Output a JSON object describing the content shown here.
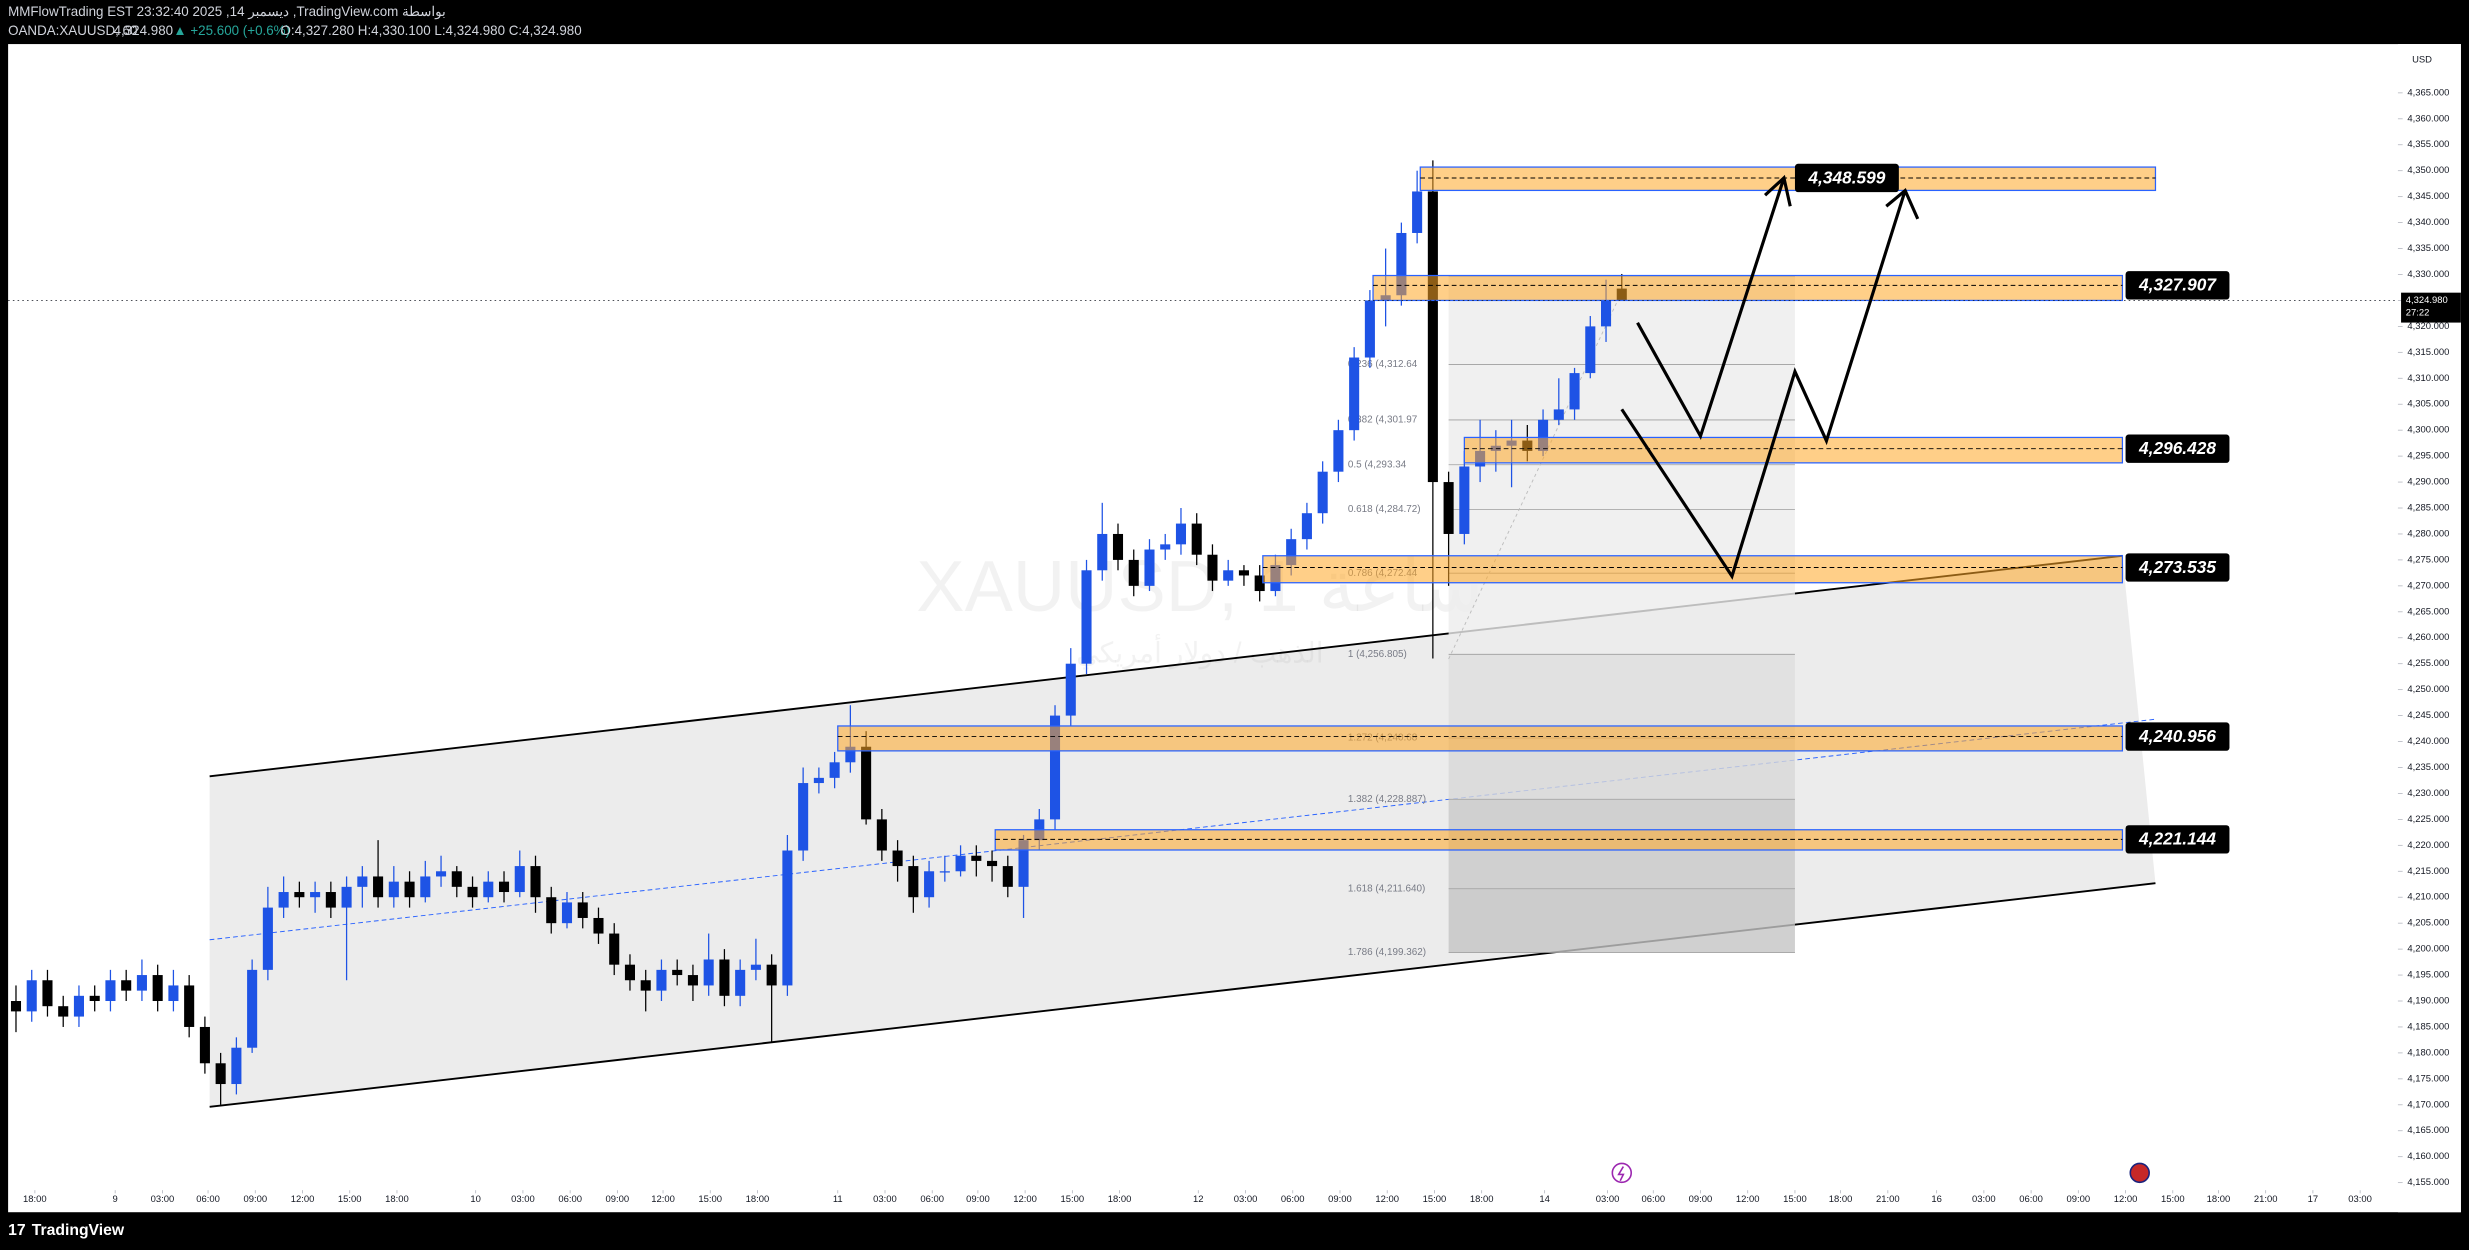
{
  "header": {
    "line1": "MMFlowTrading EST 23:32:40 2025 ,14 ديسمبر ,TradingView.com بواسطة",
    "symbol": "OANDA:XAUUSD, 60",
    "last": "4,324.980",
    "change": "▲ +25.600 (+0.6%)",
    "ohlc": "O:4,327.280 H:4,330.100 L:4,324.980 C:4,324.980"
  },
  "footer": {
    "brand": "TradingView"
  },
  "chart_data": {
    "type": "candlestick",
    "currency": "USD",
    "watermark": [
      "XAUUSD, 1 ساعة",
      "الذهب / دولار أمريكي"
    ],
    "xlim": [
      0,
      151.8
    ],
    "ylim": [
      4149.3,
      4374.4
    ],
    "last_price": 4324.98,
    "last_price_label": "4,324.980",
    "countdown": "27:22",
    "up_color": "#1e53e5",
    "down_color": "#000000",
    "yticks": [
      {
        "value": 4155,
        "label": "4,155.000"
      },
      {
        "value": 4160,
        "label": "4,160.000"
      },
      {
        "value": 4165,
        "label": "4,165.000"
      },
      {
        "value": 4170,
        "label": "4,170.000"
      },
      {
        "value": 4175,
        "label": "4,175.000"
      },
      {
        "value": 4180,
        "label": "4,180.000"
      },
      {
        "value": 4185,
        "label": "4,185.000"
      },
      {
        "value": 4190,
        "label": "4,190.000"
      },
      {
        "value": 4195,
        "label": "4,195.000"
      },
      {
        "value": 4200,
        "label": "4,200.000"
      },
      {
        "value": 4205,
        "label": "4,205.000"
      },
      {
        "value": 4210,
        "label": "4,210.000"
      },
      {
        "value": 4215,
        "label": "4,215.000"
      },
      {
        "value": 4220,
        "label": "4,220.000"
      },
      {
        "value": 4225,
        "label": "4,225.000"
      },
      {
        "value": 4230,
        "label": "4,230.000"
      },
      {
        "value": 4235,
        "label": "4,235.000"
      },
      {
        "value": 4240,
        "label": "4,240.000"
      },
      {
        "value": 4245,
        "label": "4,245.000"
      },
      {
        "value": 4250,
        "label": "4,250.000"
      },
      {
        "value": 4255,
        "label": "4,255.000"
      },
      {
        "value": 4260,
        "label": "4,260.000"
      },
      {
        "value": 4265,
        "label": "4,265.000"
      },
      {
        "value": 4270,
        "label": "4,270.000"
      },
      {
        "value": 4275,
        "label": "4,275.000"
      },
      {
        "value": 4280,
        "label": "4,280.000"
      },
      {
        "value": 4285,
        "label": "4,285.000"
      },
      {
        "value": 4290,
        "label": "4,290.000"
      },
      {
        "value": 4295,
        "label": "4,295.000"
      },
      {
        "value": 4300,
        "label": "4,300.000"
      },
      {
        "value": 4305,
        "label": "4,305.000"
      },
      {
        "value": 4310,
        "label": "4,310.000"
      },
      {
        "value": 4315,
        "label": "4,315.000"
      },
      {
        "value": 4320,
        "label": "4,320.000"
      },
      {
        "value": 4325,
        "label": "4,325.000"
      },
      {
        "value": 4330,
        "label": "4,330.000"
      },
      {
        "value": 4335,
        "label": "4,335.000"
      },
      {
        "value": 4340,
        "label": "4,340.000"
      },
      {
        "value": 4345,
        "label": "4,345.000"
      },
      {
        "value": 4350,
        "label": "4,350.000"
      },
      {
        "value": 4355,
        "label": "4,355.000"
      },
      {
        "value": 4360,
        "label": "4,360.000"
      },
      {
        "value": 4365,
        "label": "4,365.000"
      }
    ],
    "xticks": [
      {
        "value": 1.7,
        "label": "18:00"
      },
      {
        "value": 6.8,
        "label": "9"
      },
      {
        "value": 9.8,
        "label": "03:00"
      },
      {
        "value": 12.7,
        "label": "06:00"
      },
      {
        "value": 15.7,
        "label": "09:00"
      },
      {
        "value": 18.7,
        "label": "12:00"
      },
      {
        "value": 21.7,
        "label": "15:00"
      },
      {
        "value": 24.7,
        "label": "18:00"
      },
      {
        "value": 29.7,
        "label": "10"
      },
      {
        "value": 32.7,
        "label": "03:00"
      },
      {
        "value": 35.7,
        "label": "06:00"
      },
      {
        "value": 38.7,
        "label": "09:00"
      },
      {
        "value": 41.6,
        "label": "12:00"
      },
      {
        "value": 44.6,
        "label": "15:00"
      },
      {
        "value": 47.6,
        "label": "18:00"
      },
      {
        "value": 52.7,
        "label": "11"
      },
      {
        "value": 55.7,
        "label": "03:00"
      },
      {
        "value": 58.7,
        "label": "06:00"
      },
      {
        "value": 61.6,
        "label": "09:00"
      },
      {
        "value": 64.6,
        "label": "12:00"
      },
      {
        "value": 67.6,
        "label": "15:00"
      },
      {
        "value": 70.6,
        "label": "18:00"
      },
      {
        "value": 75.6,
        "label": "12"
      },
      {
        "value": 78.6,
        "label": "03:00"
      },
      {
        "value": 81.6,
        "label": "06:00"
      },
      {
        "value": 84.6,
        "label": "09:00"
      },
      {
        "value": 87.6,
        "label": "12:00"
      },
      {
        "value": 90.6,
        "label": "15:00"
      },
      {
        "value": 93.6,
        "label": "18:00"
      },
      {
        "value": 97.6,
        "label": "14"
      },
      {
        "value": 101.6,
        "label": "03:00"
      },
      {
        "value": 104.5,
        "label": "06:00"
      },
      {
        "value": 107.5,
        "label": "09:00"
      },
      {
        "value": 110.5,
        "label": "12:00"
      },
      {
        "value": 113.5,
        "label": "15:00"
      },
      {
        "value": 116.4,
        "label": "18:00"
      },
      {
        "value": 119.4,
        "label": "21:00"
      },
      {
        "value": 122.5,
        "label": "16"
      },
      {
        "value": 125.5,
        "label": "03:00"
      },
      {
        "value": 128.5,
        "label": "06:00"
      },
      {
        "value": 131.5,
        "label": "09:00"
      },
      {
        "value": 134.5,
        "label": "12:00"
      },
      {
        "value": 137.5,
        "label": "15:00"
      },
      {
        "value": 140.4,
        "label": "18:00"
      },
      {
        "value": 143.4,
        "label": "21:00"
      },
      {
        "value": 146.4,
        "label": "17"
      },
      {
        "value": 149.4,
        "label": "03:00"
      }
    ],
    "channel": {
      "upper": [
        {
          "x": 12.8,
          "price": 4233.3
        },
        {
          "x": 134.3,
          "price": 4275.8
        }
      ],
      "lower": [
        {
          "x": 12.8,
          "price": 4169.6
        },
        {
          "x": 136.4,
          "price": 4212.7
        }
      ],
      "middle": [
        {
          "x": 12.8,
          "price": 4201.8
        },
        {
          "x": 136.4,
          "price": 4244.3
        }
      ]
    },
    "fib": {
      "start": 91.5,
      "end": 113.5,
      "levels": [
        {
          "price": 4329.7
        },
        {
          "price": 4312.64,
          "label": "0.236 (4,312.64"
        },
        {
          "price": 4301.97,
          "label": "0.382 (4,301.97"
        },
        {
          "price": 4293.34,
          "label": "0.5 (4,293.34"
        },
        {
          "price": 4284.72,
          "label": "0.618 (4,284.72)"
        },
        {
          "price": 4272.44,
          "label": "0.786 (4,272.44"
        },
        {
          "price": 4256.805,
          "label": "1 (4,256.805)"
        },
        {
          "price": 4240.68,
          "label": "1.272 (4,240.68"
        },
        {
          "price": 4228.887,
          "label": "1.382 (4,228.887)"
        },
        {
          "price": 4211.64,
          "label": "1.618 (4,211.640)"
        },
        {
          "price": 4199.362,
          "label": "1.786 (4,199.362)"
        }
      ]
    },
    "zones": [
      {
        "price": 4348.599,
        "value_label": "4,348.599",
        "top": 4350.7,
        "bottom": 4346.2,
        "start": 89.7,
        "end": 136.4
      },
      {
        "price": 4327.907,
        "value_label": "4,327.907",
        "top": 4329.8,
        "bottom": 4325.0,
        "start": 86.7,
        "end": 134.3
      },
      {
        "price": 4296.428,
        "value_label": "4,296.428",
        "top": 4298.6,
        "bottom": 4293.7,
        "start": 92.5,
        "end": 134.3
      },
      {
        "price": 4273.535,
        "value_label": "4,273.535",
        "top": 4275.8,
        "bottom": 4270.6,
        "start": 79.7,
        "end": 134.3
      },
      {
        "price": 4240.956,
        "value_label": "4,240.956",
        "top": 4243.0,
        "bottom": 4238.2,
        "start": 52.7,
        "end": 134.3
      },
      {
        "price": 4221.144,
        "value_label": "4,221.144",
        "top": 4223.0,
        "bottom": 4219.1,
        "start": 62.7,
        "end": 134.3
      }
    ],
    "series": [
      {
        "name": "XAUUSD",
        "ohlc": [
          [
            4190,
            4193,
            4184,
            4188
          ],
          [
            4188,
            4196,
            4186,
            4194
          ],
          [
            4194,
            4196,
            4187,
            4189
          ],
          [
            4189,
            4191,
            4185,
            4187
          ],
          [
            4187,
            4193,
            4185,
            4191
          ],
          [
            4191,
            4193,
            4188,
            4190
          ],
          [
            4190,
            4196,
            4188,
            4194
          ],
          [
            4194,
            4196,
            4190,
            4192
          ],
          [
            4192,
            4198,
            4190,
            4195
          ],
          [
            4195,
            4197,
            4188,
            4190
          ],
          [
            4190,
            4196,
            4188,
            4193
          ],
          [
            4193,
            4195,
            4183,
            4185
          ],
          [
            4185,
            4187,
            4176,
            4178
          ],
          [
            4178,
            4180,
            4170,
            4174
          ],
          [
            4174,
            4183,
            4172,
            4181
          ],
          [
            4181,
            4198,
            4180,
            4196
          ],
          [
            4196,
            4212,
            4194,
            4208
          ],
          [
            4208,
            4214,
            4206,
            4211
          ],
          [
            4211,
            4213,
            4208,
            4210
          ],
          [
            4210,
            4213,
            4207,
            4211
          ],
          [
            4211,
            4213,
            4206,
            4208
          ],
          [
            4208,
            4214,
            4194,
            4212
          ],
          [
            4212,
            4216,
            4208,
            4214
          ],
          [
            4214,
            4221,
            4208,
            4210
          ],
          [
            4210,
            4216,
            4208,
            4213
          ],
          [
            4213,
            4215,
            4208,
            4210
          ],
          [
            4210,
            4217,
            4209,
            4214
          ],
          [
            4214,
            4218,
            4212,
            4215
          ],
          [
            4215,
            4216,
            4210,
            4212
          ],
          [
            4212,
            4214,
            4208,
            4210
          ],
          [
            4210,
            4215,
            4209,
            4213
          ],
          [
            4213,
            4215,
            4209,
            4211
          ],
          [
            4211,
            4219,
            4210,
            4216
          ],
          [
            4216,
            4218,
            4207,
            4210
          ],
          [
            4210,
            4212,
            4203,
            4205
          ],
          [
            4205,
            4211,
            4204,
            4209
          ],
          [
            4209,
            4211,
            4204,
            4206
          ],
          [
            4206,
            4208,
            4201,
            4203
          ],
          [
            4203,
            4205,
            4195,
            4197
          ],
          [
            4197,
            4199,
            4192,
            4194
          ],
          [
            4194,
            4196,
            4188,
            4192
          ],
          [
            4192,
            4198,
            4190,
            4196
          ],
          [
            4196,
            4198,
            4193,
            4195
          ],
          [
            4195,
            4197,
            4190,
            4193
          ],
          [
            4193,
            4203,
            4191,
            4198
          ],
          [
            4198,
            4200,
            4189,
            4191
          ],
          [
            4191,
            4198,
            4189,
            4196
          ],
          [
            4196,
            4202,
            4194,
            4197
          ],
          [
            4197,
            4199,
            4182,
            4193
          ],
          [
            4193,
            4222,
            4191,
            4219
          ],
          [
            4219,
            4235,
            4217,
            4232
          ],
          [
            4232,
            4235,
            4230,
            4233
          ],
          [
            4233,
            4238,
            4231,
            4236
          ],
          [
            4236,
            4247,
            4234,
            4239
          ],
          [
            4239,
            4242,
            4224,
            4225
          ],
          [
            4225,
            4227,
            4217,
            4219
          ],
          [
            4219,
            4221,
            4213,
            4216
          ],
          [
            4216,
            4218,
            4207,
            4210
          ],
          [
            4210,
            4217,
            4208,
            4215
          ],
          [
            4215,
            4218,
            4213,
            4215
          ],
          [
            4215,
            4220,
            4214,
            4218
          ],
          [
            4218,
            4220,
            4214,
            4217
          ],
          [
            4217,
            4219,
            4213,
            4216
          ],
          [
            4216,
            4218,
            4210,
            4212
          ],
          [
            4212,
            4222,
            4206,
            4221
          ],
          [
            4221,
            4227,
            4219,
            4225
          ],
          [
            4225,
            4247,
            4223,
            4245
          ],
          [
            4245,
            4258,
            4243,
            4255
          ],
          [
            4255,
            4275,
            4253,
            4273
          ],
          [
            4273,
            4286,
            4271,
            4280
          ],
          [
            4280,
            4282,
            4273,
            4275
          ],
          [
            4275,
            4277,
            4268,
            4270
          ],
          [
            4270,
            4279,
            4269,
            4277
          ],
          [
            4277,
            4280,
            4275,
            4278
          ],
          [
            4278,
            4285,
            4276,
            4282
          ],
          [
            4282,
            4284,
            4274,
            4276
          ],
          [
            4276,
            4278,
            4269,
            4271
          ],
          [
            4271,
            4275,
            4270,
            4273
          ],
          [
            4273,
            4274,
            4270,
            4272
          ],
          [
            4272,
            4274,
            4267,
            4269
          ],
          [
            4269,
            4276,
            4268,
            4274
          ],
          [
            4274,
            4281,
            4272,
            4279
          ],
          [
            4279,
            4286,
            4277,
            4284
          ],
          [
            4284,
            4294,
            4282,
            4292
          ],
          [
            4292,
            4302,
            4290,
            4300
          ],
          [
            4300,
            4316,
            4298,
            4314
          ],
          [
            4314,
            4327,
            4312,
            4325
          ],
          [
            4325,
            4335,
            4320,
            4326
          ],
          [
            4326,
            4340,
            4324,
            4338
          ],
          [
            4338,
            4350,
            4336,
            4346
          ],
          [
            4346,
            4352,
            4256,
            4290
          ],
          [
            4290,
            4292,
            4270,
            4280
          ],
          [
            4280,
            4296,
            4278,
            4293
          ],
          [
            4293,
            4302,
            4290,
            4296
          ],
          [
            4296,
            4300,
            4292,
            4297
          ],
          [
            4297,
            4302,
            4289,
            4298
          ],
          [
            4298,
            4301,
            4294,
            4296
          ],
          [
            4296,
            4304,
            4295,
            4302
          ],
          [
            4302,
            4310,
            4301,
            4304
          ],
          [
            4304,
            4312,
            4302,
            4311
          ],
          [
            4311,
            4322,
            4310,
            4320
          ],
          [
            4320,
            4329,
            4317,
            4325
          ],
          [
            4327.28,
            4330.1,
            4324.98,
            4324.98
          ]
        ]
      }
    ]
  }
}
